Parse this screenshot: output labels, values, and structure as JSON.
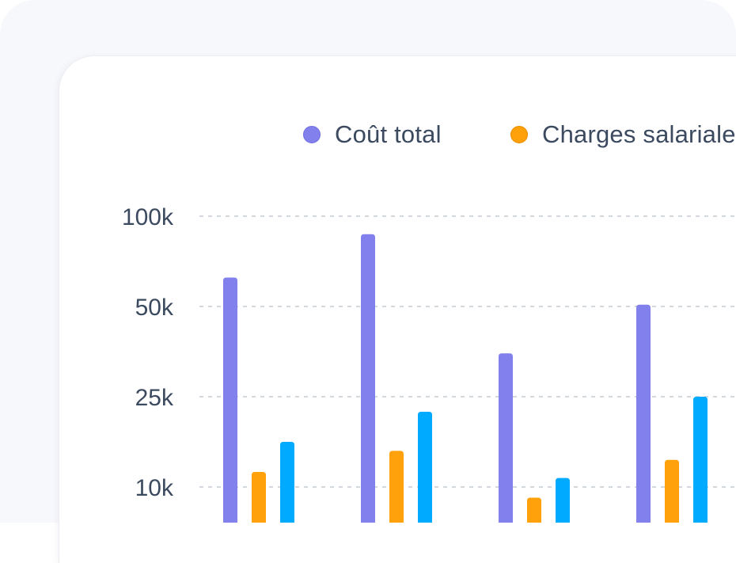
{
  "chart_data": {
    "type": "bar",
    "categories": [
      "",
      "",
      "",
      "",
      ""
    ],
    "series": [
      {
        "name": "Coût total",
        "color": "#8280ec",
        "values": [
          66000,
          90000,
          37000,
          51000,
          null
        ]
      },
      {
        "name": "Charges salariales",
        "color": "#ffa10a",
        "values": [
          12500,
          16000,
          8200,
          14500,
          null
        ]
      },
      {
        "name": "",
        "color": "#00aaff",
        "values": [
          17500,
          22500,
          11500,
          25000,
          null
        ]
      }
    ],
    "y_ticks": [
      {
        "value": 100000,
        "label": "100k"
      },
      {
        "value": 50000,
        "label": "50k"
      },
      {
        "value": 25000,
        "label": "25k"
      },
      {
        "value": 10000,
        "label": "10k"
      }
    ],
    "scale": "non-linear (tick-to-tick interpolation)",
    "grid": true,
    "legend_position": "top",
    "legend": [
      {
        "label": "Coût total",
        "color": "#8280ec"
      },
      {
        "label": "Charges salariales",
        "color": "#ffa10a"
      }
    ]
  }
}
